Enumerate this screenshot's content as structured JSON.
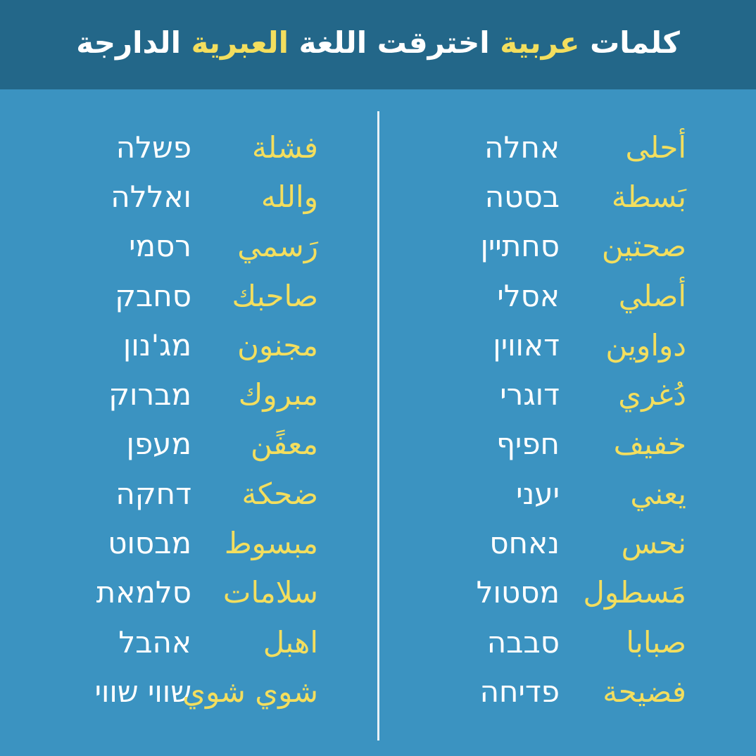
{
  "title": {
    "part1": "كلمات ",
    "part2": "عربية",
    "part3": " اخترقت اللغة ",
    "part4": "العبرية",
    "part5": " الدارجة"
  },
  "colors": {
    "header_bg": "#236789",
    "body_bg": "#3b93c1",
    "arabic": "#f3de5e",
    "hebrew": "#ffffff"
  },
  "right_column": [
    {
      "arabic": "أحلى",
      "hebrew": "אחלה"
    },
    {
      "arabic": "بَسطة",
      "hebrew": "בסטה"
    },
    {
      "arabic": "صحتين",
      "hebrew": "סחתיין"
    },
    {
      "arabic": "أصلي",
      "hebrew": "אסלי"
    },
    {
      "arabic": "دواوين",
      "hebrew": "דאווין"
    },
    {
      "arabic": "دُغري",
      "hebrew": "דוגרי"
    },
    {
      "arabic": "خفيف",
      "hebrew": "חפיף"
    },
    {
      "arabic": "يعني",
      "hebrew": "יעני"
    },
    {
      "arabic": "نحس",
      "hebrew": "נאחס"
    },
    {
      "arabic": "مَسطول",
      "hebrew": "מסטול"
    },
    {
      "arabic": "صبابا",
      "hebrew": "סבבה"
    },
    {
      "arabic": "فضيحة",
      "hebrew": "פדיחה"
    }
  ],
  "left_column": [
    {
      "arabic": "فشلة",
      "hebrew": "פשלה"
    },
    {
      "arabic": "والله",
      "hebrew": "ואללה"
    },
    {
      "arabic": "رَسمي",
      "hebrew": "רסמי"
    },
    {
      "arabic": "صاحبك",
      "hebrew": "סחבק"
    },
    {
      "arabic": "مجنون",
      "hebrew": "מג'נון"
    },
    {
      "arabic": "مبروك",
      "hebrew": "מברוק"
    },
    {
      "arabic": "معفًن",
      "hebrew": "מעפן"
    },
    {
      "arabic": "ضحكة",
      "hebrew": "דחקה"
    },
    {
      "arabic": "مبسوط",
      "hebrew": "מבסוט"
    },
    {
      "arabic": "سلامات",
      "hebrew": "סלמאת"
    },
    {
      "arabic": "اهبل",
      "hebrew": "אהבל"
    },
    {
      "arabic": "شوي شوي",
      "hebrew": "שווי שווי"
    }
  ]
}
